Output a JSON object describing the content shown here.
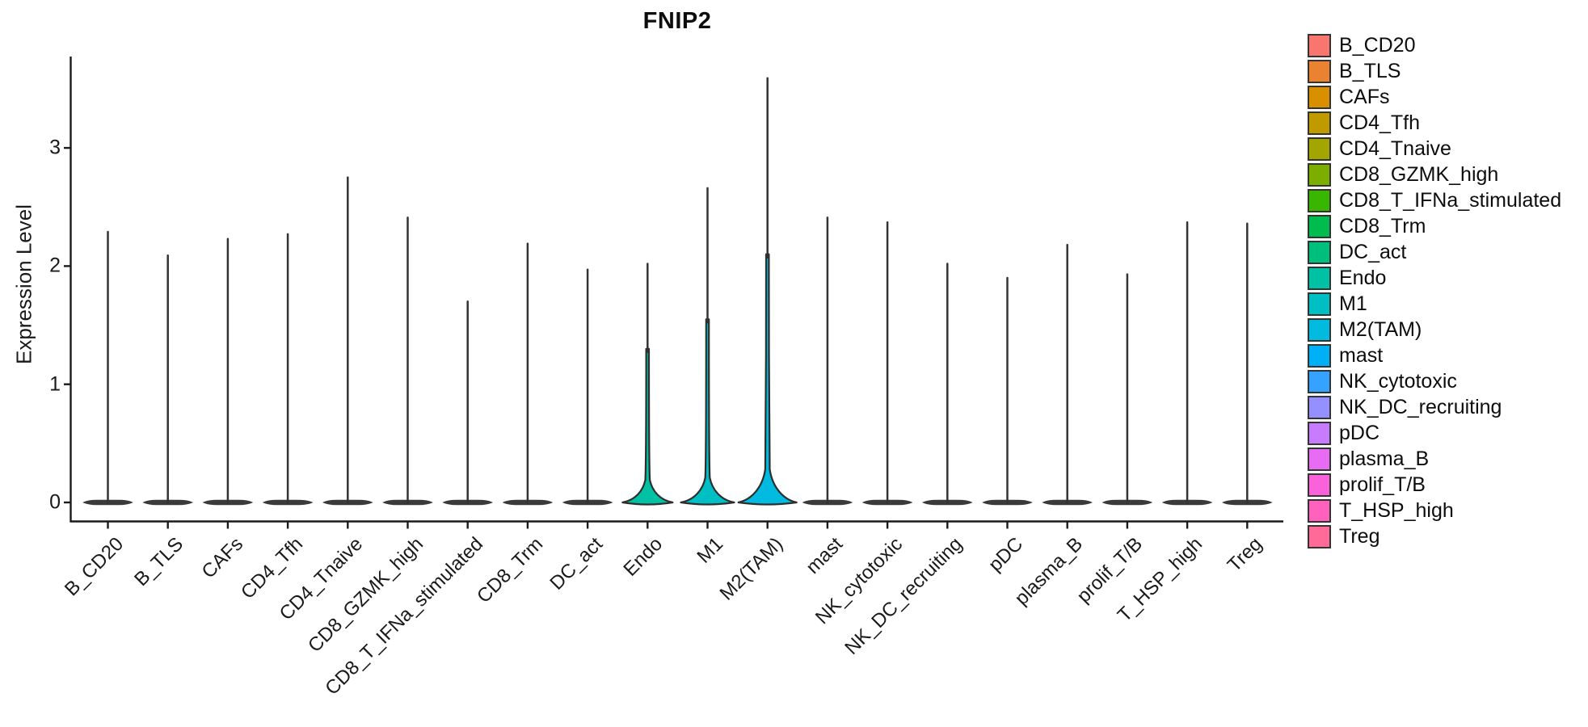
{
  "chart_data": {
    "type": "violin",
    "title": "FNIP2",
    "ylabel": "Expression Level",
    "yticks": [
      0,
      1,
      2,
      3
    ],
    "ylim": [
      -0.16,
      3.9
    ],
    "legend_position": "right",
    "grid": false,
    "violins": [
      {
        "label": "B_CD20",
        "color": "#F8766D",
        "max_expression": 2.29,
        "body_top": null,
        "bump_height": 0,
        "body_halfwidth": 30
      },
      {
        "label": "B_TLS",
        "color": "#EA8331",
        "max_expression": 2.09,
        "body_top": null,
        "bump_height": 0,
        "body_halfwidth": 30
      },
      {
        "label": "CAFs",
        "color": "#D89000",
        "max_expression": 2.23,
        "body_top": null,
        "bump_height": 0,
        "body_halfwidth": 30
      },
      {
        "label": "CD4_Tfh",
        "color": "#C09B00",
        "max_expression": 2.27,
        "body_top": null,
        "bump_height": 0,
        "body_halfwidth": 30
      },
      {
        "label": "CD4_Tnaive",
        "color": "#A3A500",
        "max_expression": 2.75,
        "body_top": null,
        "bump_height": 0,
        "body_halfwidth": 30
      },
      {
        "label": "CD8_GZMK_high",
        "color": "#7CAE00",
        "max_expression": 2.41,
        "body_top": null,
        "bump_height": 0,
        "body_halfwidth": 30
      },
      {
        "label": "CD8_T_IFNa_stimulated",
        "color": "#39B600",
        "max_expression": 1.7,
        "body_top": null,
        "bump_height": 0,
        "body_halfwidth": 30
      },
      {
        "label": "CD8_Trm",
        "color": "#00BB4E",
        "max_expression": 2.19,
        "body_top": null,
        "bump_height": 0,
        "body_halfwidth": 30
      },
      {
        "label": "DC_act",
        "color": "#00BF7D",
        "max_expression": 1.97,
        "body_top": null,
        "bump_height": 0,
        "body_halfwidth": 30
      },
      {
        "label": "Endo",
        "color": "#00C1A3",
        "max_expression": 2.02,
        "body_top": 1.3,
        "bump_height": 0.19,
        "body_halfwidth": 31
      },
      {
        "label": "M1",
        "color": "#00BFC4",
        "max_expression": 2.66,
        "body_top": 1.55,
        "bump_height": 0.21,
        "body_halfwidth": 33
      },
      {
        "label": "M2(TAM)",
        "color": "#00BAE0",
        "max_expression": 3.59,
        "body_top": 2.1,
        "bump_height": 0.28,
        "body_halfwidth": 36
      },
      {
        "label": "mast",
        "color": "#00B0F6",
        "max_expression": 2.41,
        "body_top": null,
        "bump_height": 0,
        "body_halfwidth": 30
      },
      {
        "label": "NK_cytotoxic",
        "color": "#35A2FF",
        "max_expression": 2.37,
        "body_top": null,
        "bump_height": 0,
        "body_halfwidth": 30
      },
      {
        "label": "NK_DC_recruiting",
        "color": "#9590FF",
        "max_expression": 2.02,
        "body_top": null,
        "bump_height": 0,
        "body_halfwidth": 30
      },
      {
        "label": "pDC",
        "color": "#C77CFF",
        "max_expression": 1.9,
        "body_top": null,
        "bump_height": 0,
        "body_halfwidth": 30
      },
      {
        "label": "plasma_B",
        "color": "#E76BF3",
        "max_expression": 2.18,
        "body_top": null,
        "bump_height": 0,
        "body_halfwidth": 30
      },
      {
        "label": "prolif_T/B",
        "color": "#FA62DB",
        "max_expression": 1.93,
        "body_top": null,
        "bump_height": 0,
        "body_halfwidth": 30
      },
      {
        "label": "T_HSP_high",
        "color": "#FF62BC",
        "max_expression": 2.37,
        "body_top": null,
        "bump_height": 0,
        "body_halfwidth": 30
      },
      {
        "label": "Treg",
        "color": "#FF6A98",
        "max_expression": 2.36,
        "body_top": null,
        "bump_height": 0,
        "body_halfwidth": 30
      }
    ],
    "axis_color": "#1a1a1a",
    "violin_outline_color": "#2e2e2e",
    "collapsed_violin_color": "#3a3a3a"
  }
}
